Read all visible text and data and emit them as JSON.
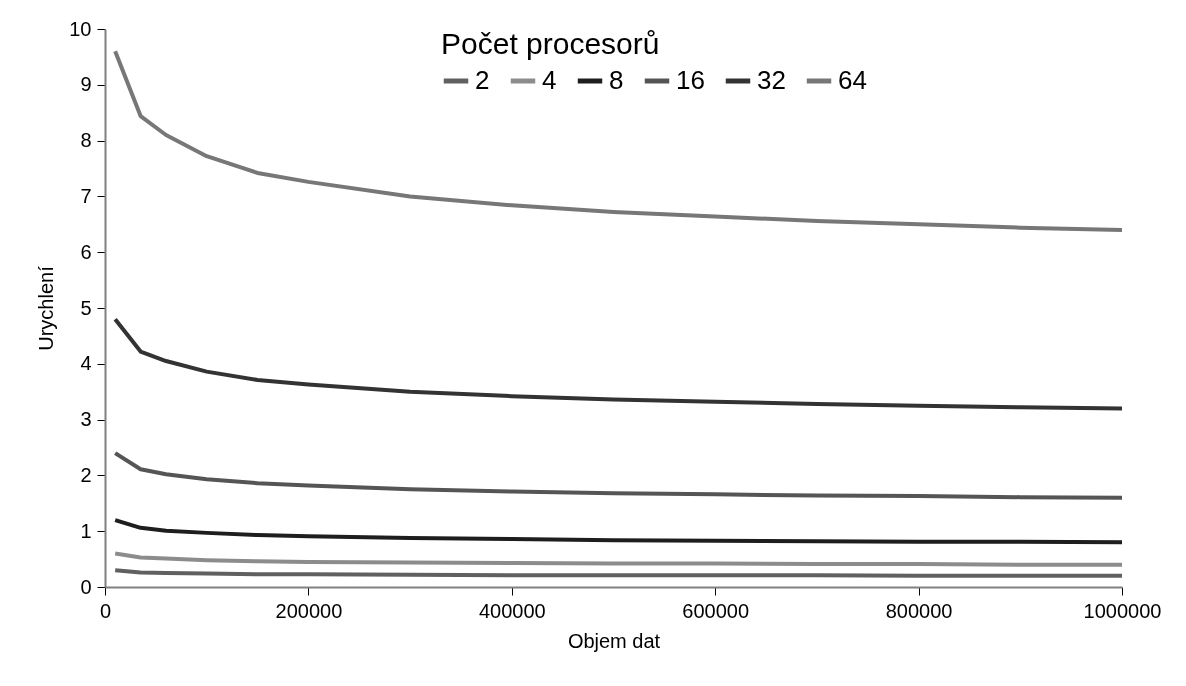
{
  "chart_data": {
    "type": "line",
    "xlabel": "Objem dat",
    "ylabel": "Urychlení",
    "legend_title": "Počet procesorů",
    "x": [
      10000,
      35000,
      60000,
      100000,
      150000,
      200000,
      300000,
      400000,
      500000,
      600000,
      700000,
      800000,
      900000,
      1000000
    ],
    "series": [
      {
        "name": "2",
        "color": "#606060",
        "values": [
          0.3,
          0.26,
          0.25,
          0.24,
          0.23,
          0.23,
          0.22,
          0.21,
          0.21,
          0.21,
          0.21,
          0.2,
          0.2,
          0.2
        ]
      },
      {
        "name": "4",
        "color": "#8c8c8c",
        "values": [
          0.6,
          0.53,
          0.51,
          0.48,
          0.46,
          0.45,
          0.44,
          0.43,
          0.42,
          0.42,
          0.41,
          0.41,
          0.4,
          0.4
        ]
      },
      {
        "name": "8",
        "color": "#1e1e1e",
        "values": [
          1.2,
          1.06,
          1.01,
          0.97,
          0.93,
          0.91,
          0.88,
          0.86,
          0.84,
          0.83,
          0.82,
          0.81,
          0.81,
          0.8
        ]
      },
      {
        "name": "16",
        "color": "#555555",
        "values": [
          2.4,
          2.11,
          2.02,
          1.93,
          1.86,
          1.82,
          1.75,
          1.71,
          1.68,
          1.66,
          1.64,
          1.63,
          1.61,
          1.6
        ]
      },
      {
        "name": "32",
        "color": "#333333",
        "values": [
          4.8,
          4.22,
          4.05,
          3.86,
          3.71,
          3.63,
          3.5,
          3.42,
          3.36,
          3.32,
          3.28,
          3.25,
          3.22,
          3.2
        ]
      },
      {
        "name": "64",
        "color": "#777777",
        "values": [
          9.6,
          8.44,
          8.1,
          7.72,
          7.42,
          7.26,
          7.0,
          6.84,
          6.72,
          6.64,
          6.56,
          6.5,
          6.44,
          6.4
        ]
      }
    ],
    "xlim": [
      0,
      1000000
    ],
    "xticks": [
      0,
      200000,
      400000,
      600000,
      800000,
      1000000
    ],
    "ylim": [
      0,
      10
    ],
    "yticks": [
      0,
      1,
      2,
      3,
      4,
      5,
      6,
      7,
      8,
      9,
      10
    ],
    "grid": false,
    "legend": "top",
    "marker": "none",
    "line_style": "solid"
  }
}
